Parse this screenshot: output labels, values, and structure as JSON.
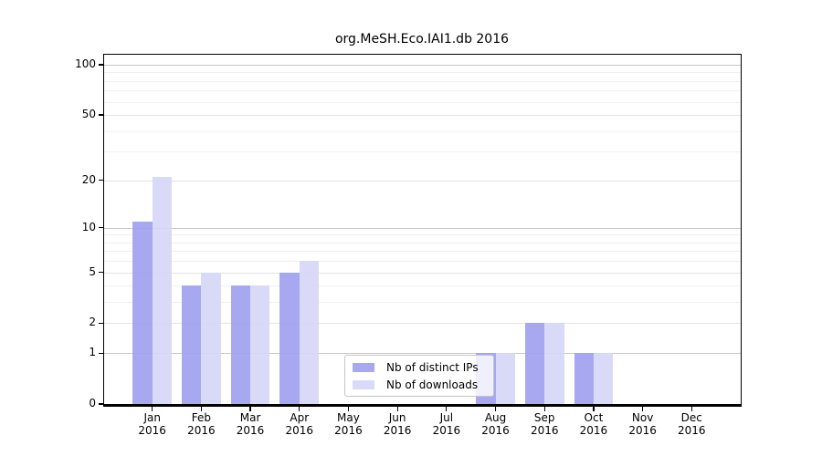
{
  "chart_data": {
    "type": "bar",
    "title": "org.MeSH.Eco.IAI1.db 2016",
    "categories": [
      "Jan 2016",
      "Feb 2016",
      "Mar 2016",
      "Apr 2016",
      "May 2016",
      "Jun 2016",
      "Jul 2016",
      "Aug 2016",
      "Sep 2016",
      "Oct 2016",
      "Nov 2016",
      "Dec 2016"
    ],
    "series": [
      {
        "name": "Nb of distinct IPs",
        "color": "#9f9ff0",
        "values": [
          11,
          4,
          4,
          5,
          0,
          0,
          0,
          1,
          2,
          1,
          0,
          0
        ]
      },
      {
        "name": "Nb of downloads",
        "color": "#d5d5f7",
        "values": [
          21,
          5,
          4,
          6,
          0,
          0,
          0,
          1,
          2,
          1,
          0,
          0
        ]
      }
    ],
    "xlabel": "",
    "ylabel": "",
    "yscale": "log10(1+y)",
    "yticks": [
      0,
      1,
      2,
      5,
      10,
      20,
      50,
      100
    ],
    "ylim": [
      0,
      116
    ],
    "grid": true,
    "legend_position": "lower center-right",
    "colors": {
      "grid_major": "#c8c8c8",
      "grid_mid": "#e3e3e3",
      "grid_minor": "#f0f0f0",
      "spine": "#000000",
      "background": "#ffffff"
    }
  }
}
